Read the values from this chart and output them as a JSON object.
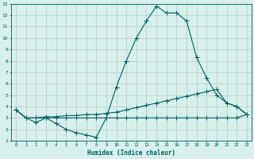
{
  "xlabel": "Humidex (Indice chaleur)",
  "bg_color": "#d8f0ec",
  "grid_color": "#b8c8c4",
  "line_color": "#006060",
  "xlim": [
    -0.5,
    23.5
  ],
  "ylim": [
    1,
    13
  ],
  "xticks": [
    0,
    1,
    2,
    3,
    4,
    5,
    6,
    7,
    8,
    9,
    10,
    11,
    12,
    13,
    14,
    15,
    16,
    17,
    18,
    19,
    20,
    21,
    22,
    23
  ],
  "yticks": [
    1,
    2,
    3,
    4,
    5,
    6,
    7,
    8,
    9,
    10,
    11,
    12,
    13
  ],
  "line1_x": [
    0,
    1,
    2,
    3,
    4,
    5,
    6,
    7,
    8,
    9,
    10,
    11,
    12,
    13,
    14,
    15,
    16,
    17,
    18,
    19,
    20,
    21,
    22,
    23
  ],
  "line1_y": [
    3.7,
    3.0,
    2.6,
    3.0,
    2.5,
    2.0,
    1.7,
    1.5,
    1.3,
    3.0,
    5.7,
    8.0,
    10.0,
    11.5,
    12.8,
    12.2,
    12.2,
    11.5,
    8.3,
    6.5,
    5.0,
    4.3,
    4.0,
    3.3
  ],
  "line2_x": [
    0,
    1,
    2,
    3,
    4,
    5,
    6,
    7,
    8,
    9,
    10,
    11,
    12,
    13,
    14,
    15,
    16,
    17,
    18,
    19,
    20,
    21,
    22,
    23
  ],
  "line2_y": [
    3.7,
    3.0,
    3.0,
    3.0,
    3.0,
    3.0,
    3.0,
    3.0,
    3.0,
    3.0,
    3.0,
    3.0,
    3.0,
    3.0,
    3.0,
    3.0,
    3.0,
    3.0,
    3.0,
    3.0,
    3.0,
    3.0,
    3.0,
    3.3
  ],
  "line3_x": [
    0,
    1,
    2,
    3,
    4,
    5,
    6,
    7,
    8,
    9,
    10,
    11,
    12,
    13,
    14,
    15,
    16,
    17,
    18,
    19,
    20,
    21,
    22,
    23
  ],
  "line3_y": [
    3.7,
    3.0,
    3.0,
    3.1,
    3.1,
    3.2,
    3.2,
    3.3,
    3.3,
    3.4,
    3.5,
    3.7,
    3.9,
    4.1,
    4.3,
    4.5,
    4.7,
    4.9,
    5.1,
    5.3,
    5.5,
    4.3,
    4.0,
    3.3
  ],
  "xlabel_fontsize": 5.5,
  "tick_fontsize": 4.0,
  "line_width": 0.8,
  "marker_size": 2.5
}
